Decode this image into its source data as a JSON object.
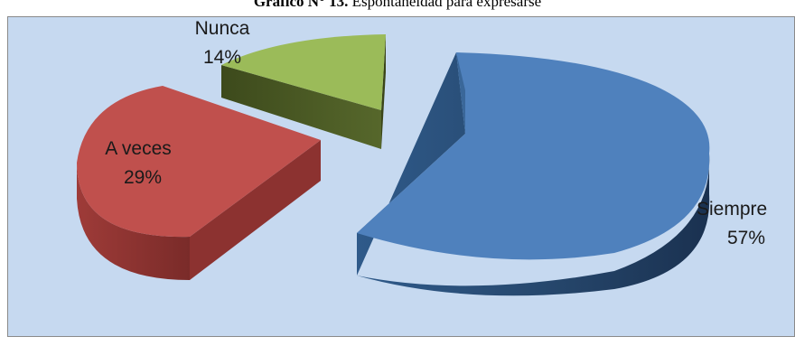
{
  "chart_data": {
    "type": "pie",
    "title_bold": "Gráfico N° 13.",
    "title_rest": " Espontaneidad para expresarse",
    "slices": [
      {
        "label": "Siempre",
        "value": 57,
        "pct_text": "57%",
        "color": "#4f81bd",
        "side": "#2c4d75"
      },
      {
        "label": "A veces",
        "value": 29,
        "pct_text": "29%",
        "color": "#c0504d",
        "side": "#7e2d2b"
      },
      {
        "label": "Nunca",
        "value": 14,
        "pct_text": "14%",
        "color": "#9bbb59",
        "side": "#4a5a26"
      }
    ],
    "style": "3d-exploded",
    "legend": "none"
  }
}
